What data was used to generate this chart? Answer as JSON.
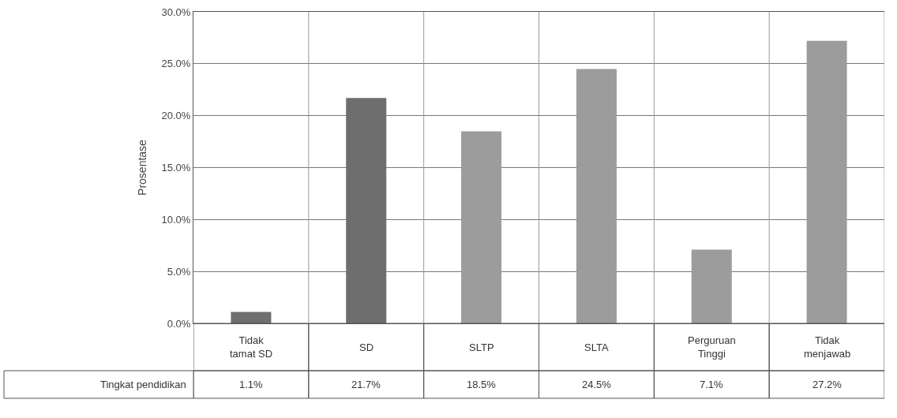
{
  "chart_data": {
    "type": "bar",
    "ylabel": "Prosentase",
    "categories": [
      "Tidak\ntamat SD",
      "SD",
      "SLTP",
      "SLTA",
      "Perguruan\nTinggi",
      "Tidak\nmenjawab"
    ],
    "series": [
      {
        "name": "Tingkat pendidikan",
        "colors": [
          "#6e6e6e",
          "#6e6e6e",
          "#9c9c9c",
          "#9c9c9c",
          "#9c9c9c",
          "#9c9c9c"
        ],
        "values": [
          1.1,
          21.7,
          18.5,
          24.5,
          7.1,
          27.2
        ],
        "value_labels": [
          "1.1%",
          "21.7%",
          "18.5%",
          "24.5%",
          "7.1%",
          "27.2%"
        ]
      }
    ],
    "ylim": [
      0,
      30
    ],
    "yticks": [
      {
        "value": 0,
        "label": "0.0%"
      },
      {
        "value": 5,
        "label": "5.0%"
      },
      {
        "value": 10,
        "label": "10.0%"
      },
      {
        "value": 15,
        "label": "15.0%"
      },
      {
        "value": 20,
        "label": "20.0%"
      },
      {
        "value": 25,
        "label": "25.0%"
      },
      {
        "value": 30,
        "label": "30.0%"
      }
    ],
    "grid": "y",
    "legend": false
  }
}
